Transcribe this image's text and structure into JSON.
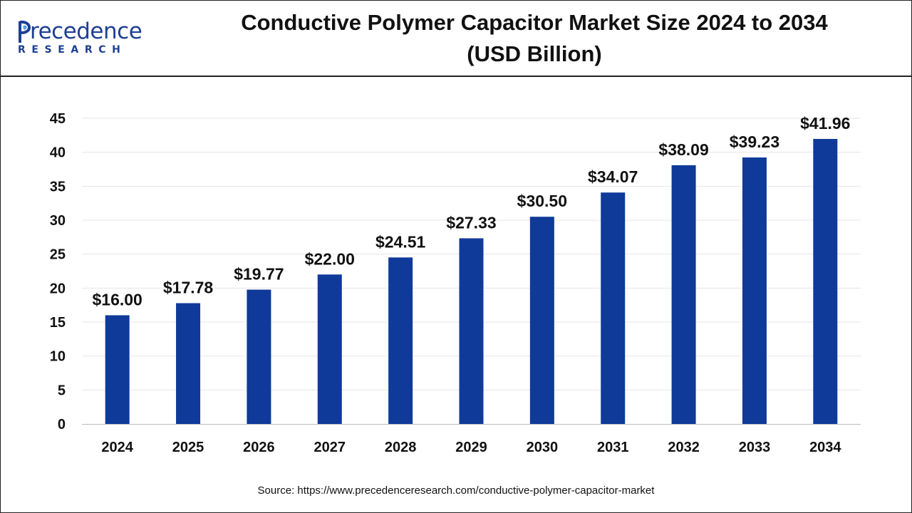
{
  "logo": {
    "word": "recedence",
    "sub": "RESEARCH",
    "brand_color": "#1d3f93"
  },
  "title_line1": "Conductive Polymer Capacitor Market Size 2024 to 2034",
  "title_line2": "(USD Billion)",
  "source": "Source: https://www.precedenceresearch.com/conductive-polymer-capacitor-market",
  "chart_data": {
    "type": "bar",
    "categories": [
      "2024",
      "2025",
      "2026",
      "2027",
      "2028",
      "2029",
      "2030",
      "2031",
      "2032",
      "2033",
      "2034"
    ],
    "values": [
      16.0,
      17.78,
      19.77,
      22.0,
      24.51,
      27.33,
      30.5,
      34.07,
      38.09,
      39.23,
      41.96
    ],
    "value_labels": [
      "$16.00",
      "$17.78",
      "$19.77",
      "$22.00",
      "$24.51",
      "$27.33",
      "$30.50",
      "$34.07",
      "$38.09",
      "$39.23",
      "$41.96"
    ],
    "yticks": [
      "0",
      "5",
      "10",
      "15",
      "20",
      "25",
      "30",
      "35",
      "40",
      "45"
    ],
    "ylim": [
      0,
      45
    ],
    "grid": true,
    "bar_color": "#0f3a9a"
  }
}
